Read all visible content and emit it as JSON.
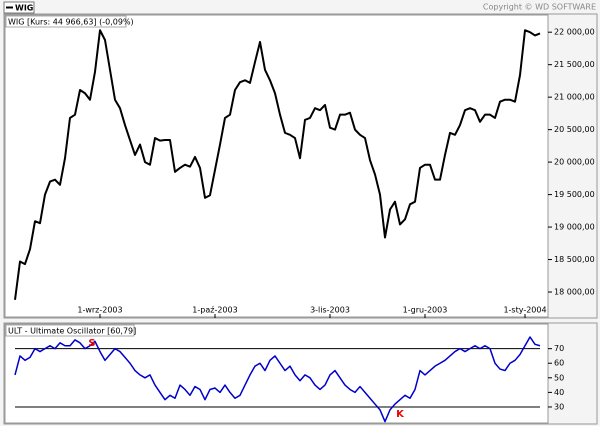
{
  "header": {
    "copyright": "Copyright © WD SOFTWARE"
  },
  "chart_data": [
    {
      "type": "line",
      "title": "WIG [Kurs: 44 966,63] (-0,09%)",
      "categories": [
        null,
        null,
        null,
        null,
        null,
        null,
        null,
        null,
        null,
        null,
        null,
        null,
        null,
        null,
        null,
        null,
        null,
        "1-wrz-2003",
        null,
        null,
        null,
        null,
        null,
        null,
        null,
        null,
        null,
        null,
        null,
        null,
        null,
        null,
        null,
        null,
        null,
        null,
        null,
        null,
        null,
        null,
        "1-paź-2003",
        null,
        null,
        null,
        null,
        null,
        null,
        null,
        null,
        null,
        null,
        null,
        null,
        null,
        null,
        null,
        null,
        null,
        null,
        null,
        null,
        null,
        null,
        "3-lis-2003",
        null,
        null,
        null,
        null,
        null,
        null,
        null,
        null,
        null,
        null,
        null,
        null,
        null,
        null,
        null,
        null,
        null,
        null,
        "1-gru-2003",
        null,
        null,
        null,
        null,
        null,
        null,
        null,
        null,
        null,
        null,
        null,
        null,
        null,
        null,
        null,
        null,
        null,
        null,
        null,
        "1-sty-2004",
        null,
        null,
        null
      ],
      "series": [
        {
          "name": "WIG",
          "color": "#000000",
          "values": [
            17880,
            18470,
            18430,
            18660,
            19090,
            19060,
            19500,
            19700,
            19730,
            19650,
            20060,
            20680,
            20730,
            21110,
            21060,
            20960,
            21390,
            22030,
            21880,
            21420,
            20960,
            20830,
            20570,
            20340,
            20110,
            20270,
            20000,
            19960,
            20370,
            20330,
            20340,
            20340,
            19850,
            19910,
            19960,
            19930,
            20080,
            19910,
            19450,
            19490,
            19880,
            20270,
            20680,
            20730,
            21110,
            21230,
            21260,
            21220,
            21540,
            21850,
            21420,
            21260,
            21060,
            20730,
            20450,
            20420,
            20370,
            20060,
            20650,
            20680,
            20830,
            20800,
            20880,
            20530,
            20500,
            20730,
            20730,
            20760,
            20500,
            20420,
            20370,
            20030,
            19810,
            19500,
            18840,
            19270,
            19390,
            19040,
            19120,
            19350,
            19390,
            19910,
            19960,
            19960,
            19730,
            19730,
            20110,
            20450,
            20420,
            20570,
            20800,
            20830,
            20800,
            20620,
            20730,
            20730,
            20680,
            20930,
            20960,
            20960,
            20930,
            21340,
            22030,
            22000,
            21950,
            21980
          ]
        }
      ],
      "ylim": [
        17600,
        22280
      ],
      "yticks": [
        {
          "value": 18000,
          "label": "18 000,00"
        },
        {
          "value": 18500,
          "label": "18 500,00"
        },
        {
          "value": 19000,
          "label": "19 000,00"
        },
        {
          "value": 19500,
          "label": "19 500,00"
        },
        {
          "value": 20000,
          "label": "20 000,00"
        },
        {
          "value": 20500,
          "label": "20 500,00"
        },
        {
          "value": 21000,
          "label": "21 000,00"
        },
        {
          "value": 21500,
          "label": "21 500,00"
        },
        {
          "value": 22000,
          "label": "22 000,00"
        }
      ]
    },
    {
      "type": "line",
      "title": "ULT - Ultimate Oscillator [60,79]",
      "series": [
        {
          "color": "#0000cc",
          "values": [
            52,
            65,
            62,
            64,
            70,
            68,
            70,
            72,
            70,
            74,
            72,
            72,
            76,
            74,
            70,
            72,
            75,
            68,
            62,
            66,
            70,
            68,
            64,
            60,
            55,
            52,
            50,
            52,
            45,
            40,
            35,
            38,
            36,
            45,
            42,
            38,
            44,
            42,
            35,
            42,
            43,
            40,
            45,
            40,
            36,
            38,
            45,
            52,
            58,
            60,
            55,
            62,
            65,
            60,
            55,
            58,
            52,
            48,
            52,
            50,
            45,
            42,
            45,
            52,
            55,
            50,
            45,
            42,
            40,
            44,
            40,
            36,
            32,
            28,
            20,
            28,
            32,
            35,
            38,
            36,
            42,
            55,
            52,
            55,
            58,
            60,
            62,
            65,
            68,
            70,
            68,
            70,
            72,
            70,
            72,
            70,
            60,
            56,
            55,
            60,
            62,
            66,
            72,
            78,
            73,
            72
          ]
        }
      ],
      "ylim": [
        19,
        78
      ],
      "yticks": [
        30,
        40,
        50,
        60,
        70
      ],
      "hlines": [
        70,
        30
      ],
      "annotations": [
        "S",
        "K"
      ]
    }
  ]
}
